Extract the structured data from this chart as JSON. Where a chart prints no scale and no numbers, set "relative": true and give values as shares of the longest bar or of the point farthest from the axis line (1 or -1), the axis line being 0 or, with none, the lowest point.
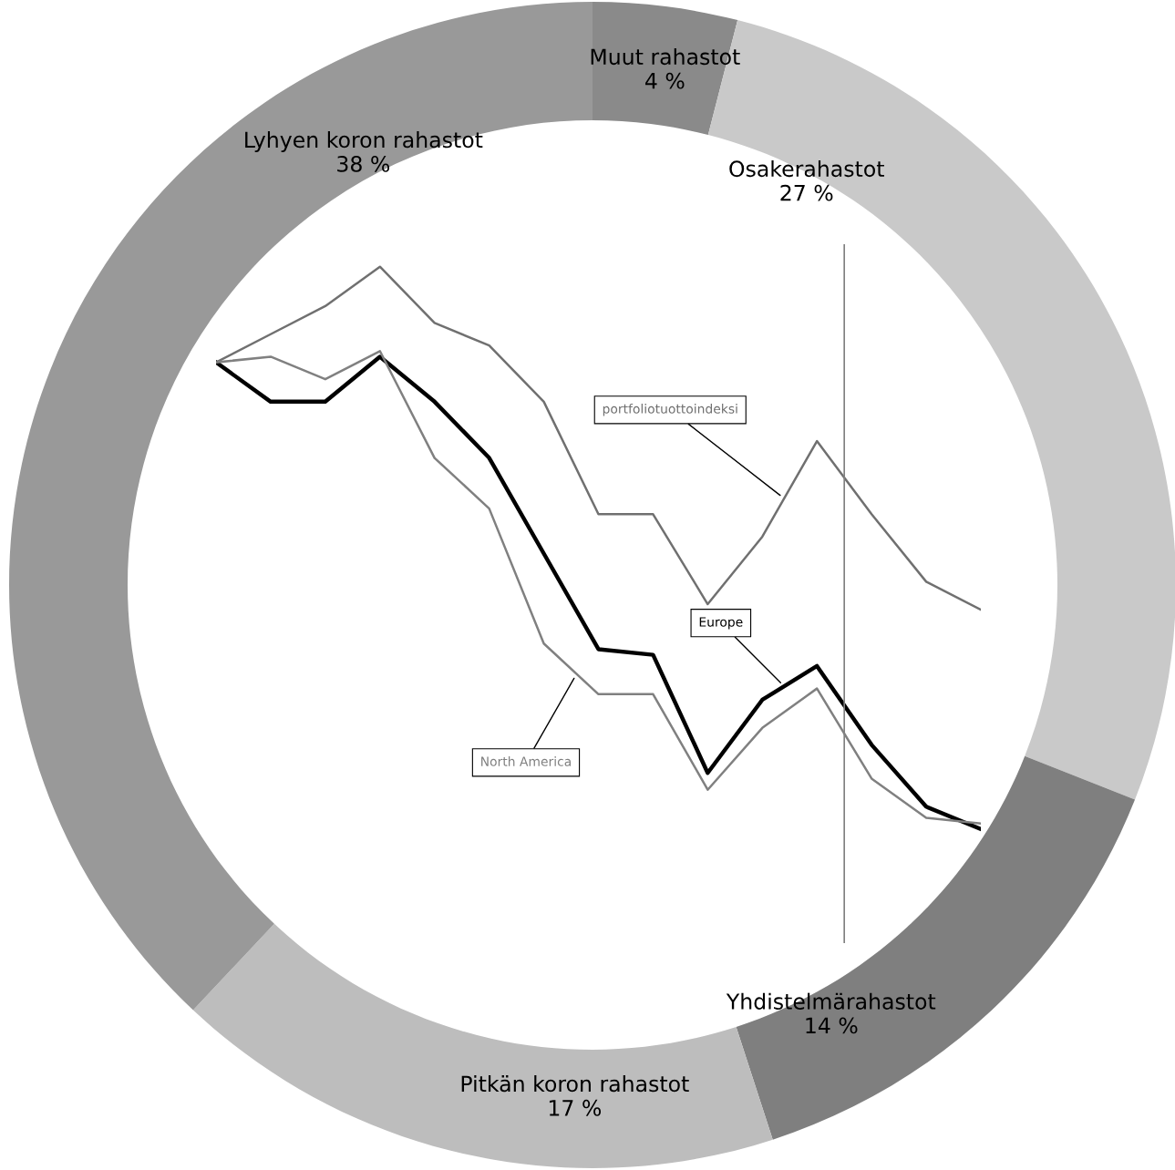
{
  "chart_data": [
    {
      "type": "donut",
      "categories": [
        "Muut rahastot",
        "Osakerahastot",
        "Yhdistelmärahastot",
        "Pitkän koron rahastot",
        "Lyhyen koron rahastot"
      ],
      "values": [
        4,
        27,
        14,
        17,
        38
      ],
      "value_labels": [
        "4 %",
        "27 %",
        "14 %",
        "17 %",
        "38 %"
      ],
      "colors": [
        "#8a8a8a",
        "#c9c9c9",
        "#7f7f7f",
        "#bdbdbd",
        "#999999"
      ],
      "legend": false
    },
    {
      "type": "line",
      "relative": true,
      "categories": [
        null,
        null,
        null,
        null,
        null,
        null,
        null,
        null,
        null,
        null,
        null,
        null,
        null,
        null,
        null
      ],
      "series": [
        {
          "name": "portfoliotuottoindeksi",
          "color": "#707070",
          "values": [
            0.83,
            0.88,
            0.93,
            1.0,
            0.9,
            0.86,
            0.76,
            0.56,
            0.56,
            0.4,
            0.52,
            0.69,
            0.56,
            0.44,
            0.39
          ]
        },
        {
          "name": "Europe",
          "color": "#000000",
          "values": [
            0.83,
            0.76,
            0.76,
            0.84,
            0.76,
            0.66,
            0.49,
            0.32,
            0.31,
            0.1,
            0.23,
            0.29,
            0.15,
            0.04,
            0.0
          ]
        },
        {
          "name": "North America",
          "color": "#808080",
          "values": [
            0.83,
            0.84,
            0.8,
            0.85,
            0.66,
            0.57,
            0.33,
            0.24,
            0.24,
            0.07,
            0.18,
            0.25,
            0.09,
            0.02,
            0.01
          ]
        }
      ],
      "legend": false
    }
  ]
}
